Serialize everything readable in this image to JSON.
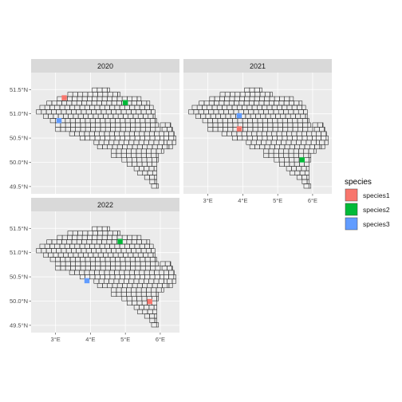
{
  "chart_data": {
    "type": "map",
    "panel_type": "facet",
    "projection": "lon/lat",
    "xlim": [
      2.3,
      6.55
    ],
    "ylim": [
      49.35,
      51.85
    ],
    "x_ticks": [
      3,
      4,
      5,
      6
    ],
    "x_tick_labels": [
      "3°E",
      "4°E",
      "5°E",
      "6°E"
    ],
    "y_ticks": [
      49.5,
      50.0,
      50.5,
      51.0,
      51.5
    ],
    "y_tick_labels": [
      "49.5°N",
      "50.0°N",
      "50.5°N",
      "51.0°N",
      "51.5°N"
    ],
    "grid_cell": {
      "dlon": 0.143,
      "dlat": 0.09
    },
    "facets": [
      {
        "title": "2020",
        "points": [
          {
            "species": "species1",
            "lon": 3.25,
            "lat": 51.33
          },
          {
            "species": "species2",
            "lon": 5.0,
            "lat": 51.23
          },
          {
            "species": "species3",
            "lon": 3.1,
            "lat": 50.86
          }
        ]
      },
      {
        "title": "2021",
        "points": [
          {
            "species": "species1",
            "lon": 3.9,
            "lat": 50.69
          },
          {
            "species": "species2",
            "lon": 5.7,
            "lat": 50.05
          },
          {
            "species": "species3",
            "lon": 3.9,
            "lat": 50.96
          }
        ]
      },
      {
        "title": "2022",
        "points": [
          {
            "species": "species1",
            "lon": 5.7,
            "lat": 49.99
          },
          {
            "species": "species2",
            "lon": 4.85,
            "lat": 51.23
          },
          {
            "species": "species3",
            "lon": 3.9,
            "lat": 50.42
          }
        ]
      }
    ],
    "legend": {
      "title": "species",
      "position": "right",
      "items": [
        {
          "label": "species1",
          "color": "#F8766D"
        },
        {
          "label": "species2",
          "color": "#00BA38"
        },
        {
          "label": "species3",
          "color": "#619CFF"
        }
      ]
    },
    "colors": {
      "panel_bg": "#EBEBEB",
      "strip_bg": "#D9D9D9",
      "grid": "#FFFFFF",
      "cell_fill": "#EBEBEB",
      "cell_stroke": "#333333"
    }
  }
}
